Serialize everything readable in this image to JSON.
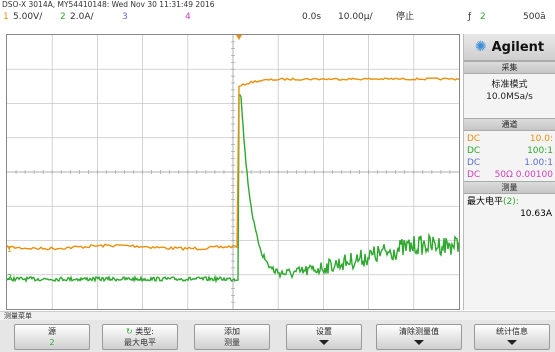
{
  "header": {
    "instrument": "DSO-X 3014A, MY54410148: Wed Nov 30 11:31:49 2016"
  },
  "channels": {
    "ch1": {
      "num": "1",
      "scale": "5.00V/",
      "color": "#e8900c"
    },
    "ch2": {
      "num": "2",
      "scale": "2.0A/",
      "color": "#2ea82e"
    },
    "ch3": {
      "num": "3",
      "color": "#5a6fd0"
    },
    "ch4": {
      "num": "4",
      "color": "#d040c0"
    }
  },
  "timebase": {
    "delay": "0.0s",
    "scale": "10.00µ/",
    "run_state": "停止"
  },
  "trigger": {
    "symbol": "ƒ",
    "source": "2",
    "level": "500ā"
  },
  "sidebar": {
    "brand": "Agilent",
    "acquire": {
      "title": "采集",
      "mode": "标准模式",
      "rate": "10.0MSa/s"
    },
    "channels_title": "通道",
    "channels": [
      {
        "coupling": "DC",
        "value": "10.0:",
        "color": "#e8900c"
      },
      {
        "coupling": "DC",
        "value": "100:1",
        "color": "#2ea82e"
      },
      {
        "coupling": "DC",
        "value": "1.00:1",
        "color": "#5a6fd0"
      },
      {
        "coupling": "DC",
        "value": "50Ω 0.00100",
        "color": "#d040c0"
      }
    ],
    "measure_title": "测量",
    "measurement": {
      "name": "最大电平",
      "src": "(2):",
      "value": "10.63A"
    }
  },
  "markers": {
    "ch1": "1",
    "ch2": "2"
  },
  "menu_label": "测量菜单",
  "softkeys": [
    {
      "label": "源",
      "value": "2"
    },
    {
      "label": "类型:",
      "value": "最大电平"
    },
    {
      "label": "添加",
      "value": "测量"
    },
    {
      "label": "设置",
      "value": ""
    },
    {
      "label": "清除测量值",
      "value": ""
    },
    {
      "label": "统计信息",
      "value": ""
    }
  ]
}
